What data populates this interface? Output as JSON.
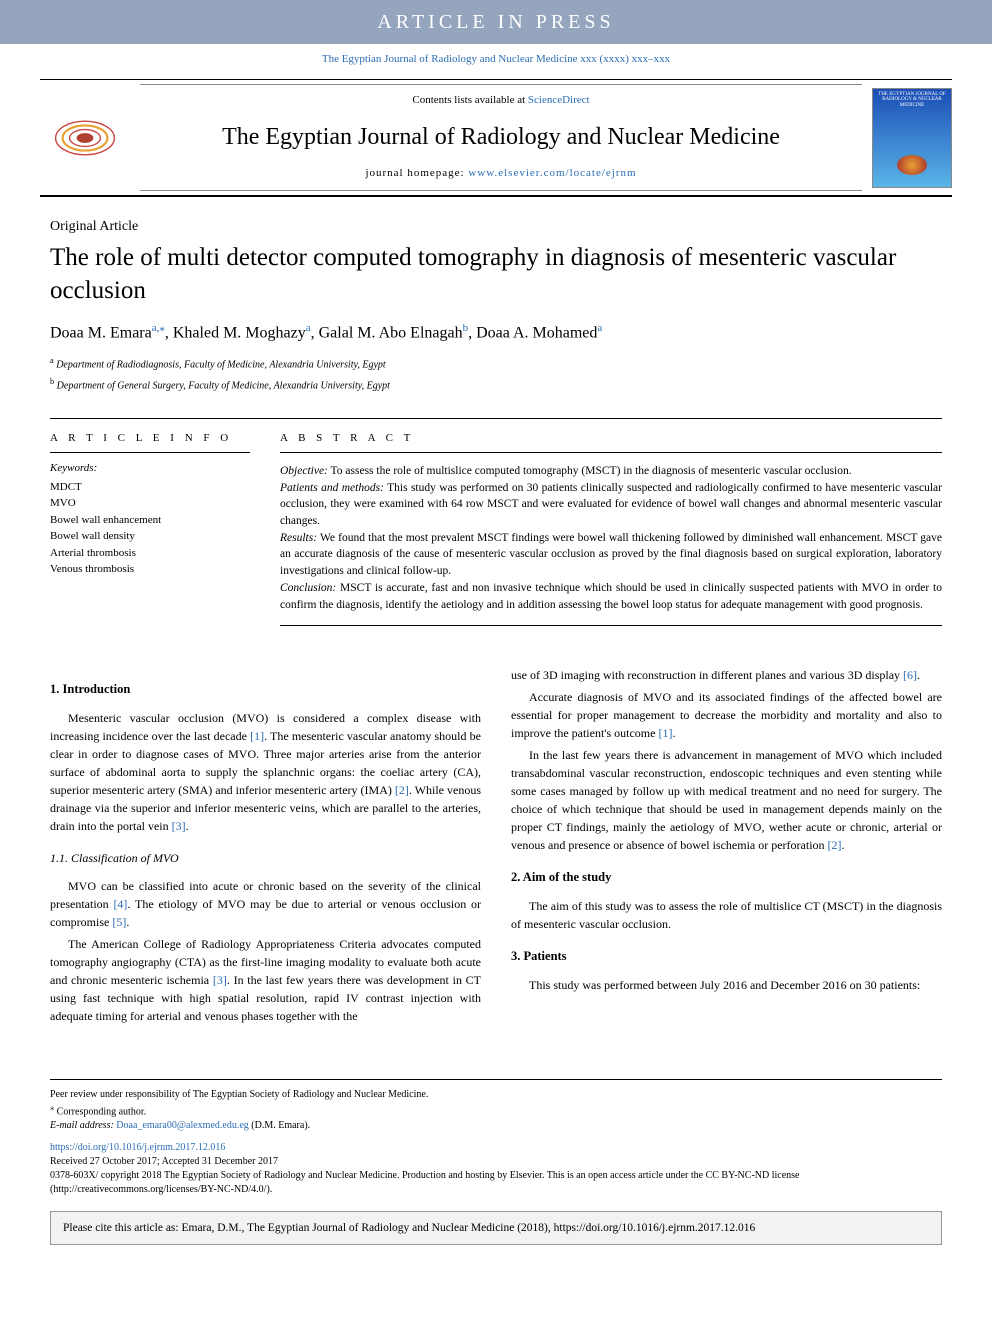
{
  "banner": "ARTICLE IN PRESS",
  "journal_ref_top": "The Egyptian Journal of Radiology and Nuclear Medicine xxx (xxxx) xxx–xxx",
  "header": {
    "contents_prefix": "Contents lists available at ",
    "contents_link": "ScienceDirect",
    "journal_title": "The Egyptian Journal of Radiology and Nuclear Medicine",
    "homepage_prefix": "journal homepage: ",
    "homepage_url": "www.elsevier.com/locate/ejrnm",
    "cover_text": "THE EGYPTIAN JOURNAL OF RADIOLOGY & NUCLEAR MEDICINE"
  },
  "article_type": "Original Article",
  "title": "The role of multi detector computed tomography in diagnosis of mesenteric vascular occlusion",
  "authors_html": "Doaa M. Emara|a,*|, Khaled M. Moghazy|a|, Galal M. Abo Elnagah|b|, Doaa A. Mohamed|a|",
  "affiliations": [
    {
      "sup": "a",
      "text": "Department of Radiodiagnosis, Faculty of Medicine, Alexandria University, Egypt"
    },
    {
      "sup": "b",
      "text": "Department of General Surgery, Faculty of Medicine, Alexandria University, Egypt"
    }
  ],
  "article_info_head": "A R T I C L E  I N F O",
  "keywords_label": "Keywords:",
  "keywords": [
    "MDCT",
    "MVO",
    "Bowel wall enhancement",
    "Bowel wall density",
    "Arterial thrombosis",
    "Venous thrombosis"
  ],
  "abstract_head": "A B S T R A C T",
  "abstract": {
    "objective_label": "Objective:",
    "objective": " To assess the role of multislice computed tomography (MSCT) in the diagnosis of mesenteric vascular occlusion.",
    "pm_label": "Patients and methods:",
    "pm": " This study was performed on 30 patients clinically suspected and radiologically confirmed to have mesenteric vascular occlusion, they were examined with 64 row MSCT and were evaluated for evidence of bowel wall changes and abnormal mesenteric vascular changes.",
    "results_label": "Results:",
    "results": " We found that the most prevalent MSCT findings were bowel wall thickening followed by diminished wall enhancement. MSCT gave an accurate diagnosis of the cause of mesenteric vascular occlusion as proved by the final diagnosis based on surgical exploration, laboratory investigations and clinical follow-up.",
    "conclusion_label": "Conclusion:",
    "conclusion": " MSCT is accurate, fast and non invasive technique which should be used in clinically suspected patients with MVO in order to confirm the diagnosis, identify the aetiology and in addition assessing the bowel loop status for adequate management with good prognosis."
  },
  "body": {
    "s1_title": "1. Introduction",
    "s1_p1_a": "Mesenteric vascular occlusion (MVO) is considered a complex disease with increasing incidence over the last decade ",
    "ref1": "[1]",
    "s1_p1_b": ". The mesenteric vascular anatomy should be clear in order to diagnose cases of MVO. Three major arteries arise from the anterior surface of abdominal aorta to supply the splanchnic organs: the coeliac artery (CA), superior mesenteric artery (SMA) and inferior mesenteric artery (IMA) ",
    "ref2": "[2]",
    "s1_p1_c": ". While venous drainage via the superior and inferior mesenteric veins, which are parallel to the arteries, drain into the portal vein ",
    "ref3": "[3]",
    "s1_p1_d": ".",
    "s11_title": "1.1. Classification of MVO",
    "s11_p1_a": "MVO can be classified into acute or chronic based on the severity of the clinical presentation ",
    "ref4": "[4]",
    "s11_p1_b": ". The etiology of MVO may be due to arterial or venous occlusion or compromise ",
    "ref5": "[5]",
    "s11_p1_c": ".",
    "s11_p2_a": "The American College of Radiology Appropriateness Criteria advocates computed tomography angiography (CTA) as the first-line imaging modality to evaluate both acute and chronic mesenteric ischemia ",
    "s11_p2_b": ". In the last few years there was development in CT using fast technique with high spatial resolution, rapid IV contrast injection with adequate timing for arterial and venous phases together with the",
    "col2_p1_a": "use of 3D imaging with reconstruction in different planes and various 3D display ",
    "ref6": "[6]",
    "col2_p1_b": ".",
    "col2_p2_a": "Accurate diagnosis of MVO and its associated findings of the affected bowel are essential for proper management to decrease the morbidity and mortality and also to improve the patient's outcome ",
    "col2_p2_b": ".",
    "col2_p3_a": "In the last few years there is advancement in management of MVO which included transabdominal vascular reconstruction, endoscopic techniques and even stenting while some cases managed by follow up with medical treatment and no need for surgery. The choice of which technique that should be used in management depends mainly on the proper CT findings, mainly the aetiology of MVO, wether acute or chronic, arterial or venous and presence or absence of bowel ischemia or perforation ",
    "col2_p3_b": ".",
    "s2_title": "2. Aim of the study",
    "s2_p1": "The aim of this study was to assess the role of multislice CT (MSCT) in the diagnosis of mesenteric vascular occlusion.",
    "s3_title": "3. Patients",
    "s3_p1": "This study was performed between July 2016 and December 2016 on 30 patients:"
  },
  "footer": {
    "peer": "Peer review under responsibility of The Egyptian Society of Radiology and Nuclear Medicine.",
    "corr_sup": "⁎",
    "corr": " Corresponding author.",
    "email_label": "E-mail address: ",
    "email": "Doaa_emara00@alexmed.edu.eg",
    "email_suffix": " (D.M. Emara).",
    "doi": "https://doi.org/10.1016/j.ejrnm.2017.12.016",
    "received": "Received 27 October 2017; Accepted 31 December 2017",
    "issn_copyright": "0378-603X/ copyright 2018 The Egyptian Society of Radiology and Nuclear Medicine. Production and hosting by Elsevier. This is an open access article under the CC BY-NC-ND license (http://creativecommons.org/licenses/BY-NC-ND/4.0/).",
    "cite": "Please cite this article as: Emara, D.M., The Egyptian Journal of Radiology and Nuclear Medicine (2018), https://doi.org/10.1016/j.ejrnm.2017.12.016"
  },
  "colors": {
    "banner_bg": "#95a5bd",
    "link": "#2a6db5",
    "cover_top": "#1a4db5",
    "cover_bottom": "#5ab5e8"
  }
}
